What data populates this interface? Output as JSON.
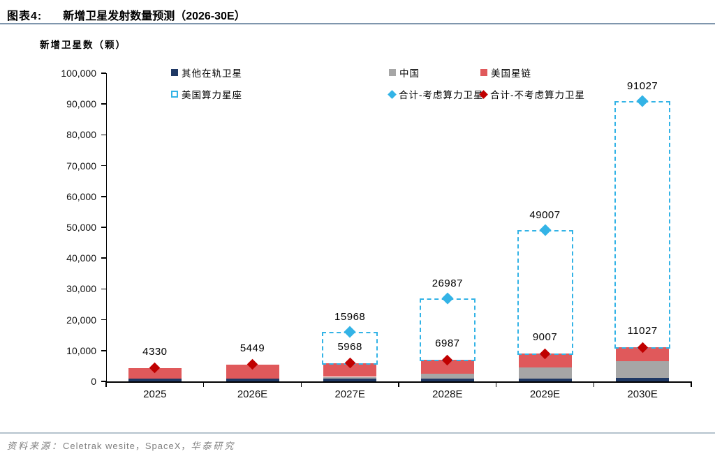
{
  "header": {
    "figure_label": "图表4:",
    "title": "新增卫星发射数量预测（2026-30E）"
  },
  "axis_caption": "新增卫星数（颗）",
  "legend": [
    {
      "label": "其他在轨卫星",
      "marker": "square",
      "color": "#1f3864",
      "row": 0,
      "col": 0
    },
    {
      "label": "中国",
      "marker": "square",
      "color": "#a6a6a6",
      "row": 0,
      "col": 1
    },
    {
      "label": "美国星链",
      "marker": "square",
      "color": "#e0595b",
      "row": 0,
      "col": 2
    },
    {
      "label": "美国算力星座",
      "marker": "dashed-square",
      "color": "#33b3e6",
      "row": 1,
      "col": 0
    },
    {
      "label": "合计-考虑算力卫星",
      "marker": "diamond",
      "color": "#33b3e6",
      "row": 1,
      "col": 1
    },
    {
      "label": "合计-不考虑算力卫星",
      "marker": "diamond",
      "color": "#c00000",
      "row": 1,
      "col": 2
    }
  ],
  "chart_data": {
    "type": "bar",
    "subtype": "stacked-bars-with-dashed-forecast-and-diamond-markers",
    "title": "新增卫星发射数量预测（2026-30E）",
    "ylabel": "新增卫星数（颗）",
    "xlabel": "",
    "categories": [
      "2025",
      "2026E",
      "2027E",
      "2028E",
      "2029E",
      "2030E"
    ],
    "series": [
      {
        "name": "其他在轨卫星",
        "style": "solid",
        "color": "#1f3864",
        "values": [
          830,
          949,
          968,
          987,
          1007,
          1027
        ]
      },
      {
        "name": "中国",
        "style": "solid",
        "color": "#a6a6a6",
        "values": [
          0,
          0,
          500,
          1500,
          3500,
          5500
        ]
      },
      {
        "name": "美国星链",
        "style": "solid",
        "color": "#e0595b",
        "values": [
          3500,
          4500,
          4500,
          4500,
          4500,
          4500
        ]
      },
      {
        "name": "美国算力星座",
        "style": "dashed-outline",
        "color": "#33b3e6",
        "values": [
          0,
          0,
          10000,
          20000,
          40000,
          80000
        ]
      }
    ],
    "markers": [
      {
        "name": "合计-考虑算力卫星",
        "shape": "diamond",
        "color": "#33b3e6",
        "values": [
          null,
          null,
          15968,
          26987,
          49007,
          91027
        ]
      },
      {
        "name": "合计-不考虑算力卫星",
        "shape": "diamond",
        "color": "#c00000",
        "values": [
          4330,
          5449,
          5968,
          6987,
          9007,
          11027
        ]
      }
    ],
    "data_labels_upper": [
      "",
      "",
      "15968",
      "26987",
      "49007",
      "91027"
    ],
    "data_labels_lower": [
      "4330",
      "5449",
      "5968",
      "6987",
      "9007",
      "11027"
    ],
    "ylim": [
      0,
      100000
    ],
    "ytick_step": 10000,
    "yticks": [
      "0",
      "10,000",
      "20,000",
      "30,000",
      "40,000",
      "50,000",
      "60,000",
      "70,000",
      "80,000",
      "90,000",
      "100,000"
    ],
    "grid": false,
    "legend_position": "top"
  },
  "source": {
    "prefix": "资料来源：",
    "vendors": "Celetrak wesite，SpaceX，",
    "suffix": "华泰研究"
  }
}
